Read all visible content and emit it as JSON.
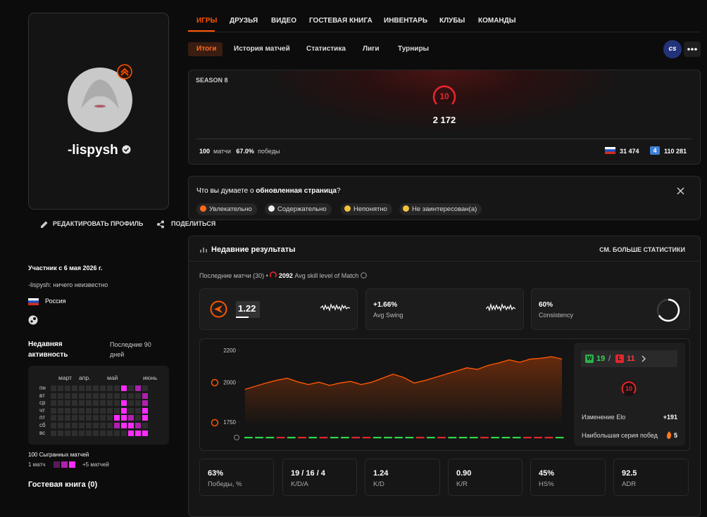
{
  "tabs": [
    "ИГРЫ",
    "ДРУЗЬЯ",
    "ВИДЕО",
    "ГОСТЕВАЯ КНИГА",
    "ИНВЕНТАРЬ",
    "КЛУБЫ",
    "КОМАНДЫ"
  ],
  "subtabs": [
    "Итоги",
    "История матчей",
    "Статистика",
    "Лиги",
    "Турниры"
  ],
  "badge": "cs",
  "profile": {
    "name": "-lispysh",
    "edit": "РЕДАКТИРОВАТЬ ПРОФИЛЬ",
    "share": "ПОДЕЛИТЬСЯ",
    "member_since": "Участник с 6 мая 2026 г.",
    "bio": "-lispysh: ничего неизвестно",
    "country": "Россия"
  },
  "activity": {
    "title": "Недавняя активность",
    "period": "Последние 90 дней",
    "months": [
      "март",
      "апр.",
      "май",
      "июнь"
    ],
    "days": [
      "пн",
      "вт",
      "ср",
      "чт",
      "пт",
      "сб",
      "вс"
    ],
    "cells": [
      [
        0,
        0,
        0,
        0,
        0,
        0,
        0,
        0,
        0,
        0,
        2,
        0,
        1,
        0
      ],
      [
        0,
        0,
        0,
        0,
        0,
        0,
        0,
        0,
        0,
        0,
        0,
        0,
        0,
        1
      ],
      [
        0,
        0,
        0,
        0,
        0,
        0,
        0,
        0,
        0,
        0,
        2,
        0,
        0,
        1
      ],
      [
        0,
        0,
        0,
        0,
        0,
        0,
        0,
        0,
        0,
        0,
        2,
        0,
        0,
        2
      ],
      [
        0,
        0,
        0,
        0,
        0,
        0,
        0,
        0,
        0,
        2,
        2,
        1,
        0,
        2
      ],
      [
        0,
        0,
        0,
        0,
        0,
        0,
        0,
        0,
        0,
        1,
        2,
        2,
        1,
        0
      ],
      [
        0,
        0,
        0,
        0,
        0,
        0,
        0,
        0,
        0,
        0,
        0,
        2,
        2,
        2
      ]
    ],
    "played": "100 Сыгранных матчей",
    "legend_low": "1 матч",
    "legend_high": "+5 матчей"
  },
  "guestbook": "Гостевая книга (0)",
  "season": {
    "title": "SEASON 8",
    "level": 10,
    "elo": "2 172",
    "matches": 100,
    "matches_label": "матчи",
    "winrate": "67.0%",
    "winrate_label": "победы",
    "rank_country": "31 474",
    "region": 4,
    "rank_region": "110 281"
  },
  "feedback": {
    "question": "Что вы думаете о",
    "question_bold": "обновленная страница",
    "question_end": "?",
    "options": [
      "Увлекательно",
      "Содержательно",
      "Непонятно",
      "Не заинтересован(а)"
    ]
  },
  "recent": {
    "title": "Недавние результаты",
    "more": "СМ. БОЛЬШЕ СТАТИСТИКИ",
    "last": "Последние матчи (30)",
    "avg_skill": 2092,
    "avg_skill_label": "Avg skill level of Match",
    "rating": "1.22",
    "swing": "+1.66%",
    "swing_label": "Avg Swing",
    "consistency": "60%",
    "consistency_label": "Consistency",
    "chart_data": {
      "type": "line",
      "values": [
        1955,
        1975,
        1995,
        2012,
        2025,
        2002,
        1985,
        2000,
        1980,
        1995,
        2005,
        1985,
        2000,
        2025,
        2050,
        2030,
        1995,
        2010,
        2030,
        2050,
        2070,
        2090,
        2080,
        2105,
        2120,
        2140,
        2125,
        2145,
        2150,
        2160,
        2145
      ],
      "color": "#ff5500",
      "ylim": [
        1750,
        2200
      ],
      "yticks": [
        1750,
        2000,
        2200
      ]
    },
    "results": [
      "W",
      "W",
      "W",
      "L",
      "W",
      "L",
      "W",
      "L",
      "W",
      "W",
      "L",
      "L",
      "W",
      "W",
      "W",
      "W",
      "L",
      "W",
      "L",
      "W",
      "W",
      "W",
      "L",
      "W",
      "W",
      "W",
      "L",
      "L",
      "L",
      "W"
    ],
    "wins": 19,
    "losses": 11,
    "level": 10,
    "elo_change_label": "Изменение Elo",
    "elo_change": "+191",
    "streak_label": "Наибольшая серия побед",
    "streak": 5
  },
  "stats": [
    {
      "value": "63%",
      "label": "Победы, %"
    },
    {
      "value": "19 / 16 / 4",
      "label": "K/D/A"
    },
    {
      "value": "1.24",
      "label": "K/D"
    },
    {
      "value": "0.90",
      "label": "K/R"
    },
    {
      "value": "45%",
      "label": "HS%"
    },
    {
      "value": "92.5",
      "label": "ADR"
    }
  ]
}
